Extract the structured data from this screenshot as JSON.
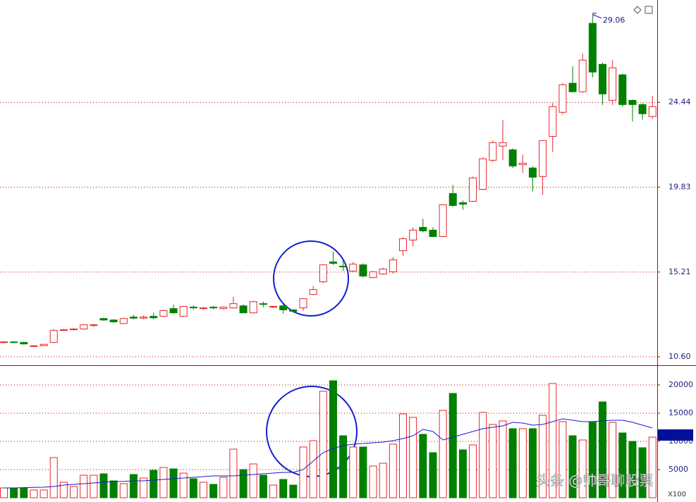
{
  "chart_data": [
    {
      "type": "candlestick",
      "open": [
        11.38,
        11.41,
        11.38,
        11.18,
        11.2,
        11.38,
        12.03,
        12.07,
        12.11,
        12.3,
        12.68,
        12.6,
        12.41,
        12.76,
        12.7,
        12.8,
        12.8,
        13.22,
        12.8,
        13.3,
        13.22,
        13.3,
        13.22,
        13.26,
        13.37,
        12.99,
        13.49,
        13.3,
        13.37,
        13.15,
        13.26,
        13.99,
        14.68,
        15.76,
        15.53,
        15.26,
        15.6,
        14.91,
        15.1,
        15.22,
        16.37,
        16.95,
        17.64,
        17.49,
        17.14,
        19.48,
        18.98,
        19.06,
        19.71,
        21.29,
        22.06,
        21.86,
        21.05,
        20.87,
        20.41,
        22.59,
        23.9,
        25.48,
        25.02,
        28.74,
        26.51,
        24.55,
        25.94,
        24.55,
        24.32,
        23.67
      ],
      "high": [
        11.45,
        11.45,
        11.41,
        11.22,
        11.3,
        12.11,
        12.11,
        12.15,
        12.38,
        12.38,
        12.72,
        12.64,
        12.72,
        12.88,
        12.84,
        13.0,
        13.15,
        13.45,
        13.37,
        13.4,
        13.3,
        13.37,
        13.34,
        13.87,
        13.45,
        13.64,
        13.6,
        13.37,
        13.45,
        13.18,
        13.79,
        14.45,
        15.64,
        16.33,
        15.87,
        15.76,
        15.68,
        15.26,
        15.45,
        16.03,
        17.1,
        17.64,
        18.1,
        17.64,
        18.87,
        19.95,
        19.1,
        20.41,
        21.45,
        22.36,
        23.48,
        21.94,
        21.6,
        20.95,
        22.36,
        24.4,
        25.5,
        26.4,
        27.1,
        29.06,
        26.6,
        26.74,
        26.0,
        24.6,
        24.4,
        24.8
      ],
      "low": [
        11.34,
        11.34,
        11.26,
        11.14,
        11.18,
        11.34,
        12.0,
        12.03,
        12.07,
        12.22,
        12.56,
        12.45,
        12.38,
        12.64,
        12.64,
        12.64,
        12.76,
        12.95,
        12.76,
        13.18,
        13.15,
        13.18,
        13.18,
        13.22,
        12.99,
        12.95,
        13.3,
        13.26,
        12.95,
        12.99,
        13.11,
        13.95,
        14.6,
        15.6,
        15.26,
        15.22,
        14.91,
        14.87,
        15.06,
        15.14,
        16.1,
        16.6,
        17.37,
        17.1,
        17.1,
        18.75,
        18.6,
        19.02,
        19.67,
        21.21,
        21.3,
        20.87,
        20.6,
        19.6,
        19.4,
        21.75,
        23.8,
        24.98,
        24.95,
        25.8,
        24.3,
        24.3,
        24.2,
        23.4,
        23.5,
        23.55
      ],
      "close": [
        11.41,
        11.38,
        11.3,
        11.2,
        11.28,
        12.03,
        12.07,
        12.11,
        12.34,
        12.34,
        12.6,
        12.5,
        12.68,
        12.7,
        12.76,
        12.72,
        13.11,
        12.99,
        13.34,
        13.26,
        13.26,
        13.26,
        13.3,
        13.49,
        12.99,
        13.6,
        13.45,
        13.34,
        13.15,
        13.07,
        13.76,
        14.26,
        15.6,
        15.68,
        15.49,
        15.64,
        14.99,
        15.22,
        15.37,
        15.87,
        17.02,
        17.49,
        17.45,
        17.14,
        18.87,
        18.83,
        18.9,
        20.33,
        21.37,
        22.25,
        22.25,
        20.98,
        21.13,
        20.37,
        22.36,
        24.21,
        25.4,
        25.02,
        26.74,
        26.09,
        24.9,
        26.32,
        24.32,
        24.32,
        23.82,
        24.21
      ],
      "up_color": "#e8262a",
      "down_color": "#008000",
      "ylim": [
        10.14,
        30.01
      ],
      "yticks": [
        {
          "value": 10.6,
          "label": "10.60"
        },
        15.21,
        19.83,
        24.44
      ],
      "grid": true
    },
    {
      "type": "volume",
      "values": [
        1750,
        1750,
        1750,
        1375,
        1375,
        7125,
        2750,
        2000,
        4000,
        4000,
        4250,
        3000,
        2500,
        4125,
        3500,
        4875,
        5375,
        5125,
        4375,
        3375,
        2750,
        2375,
        3625,
        8625,
        5000,
        6000,
        4000,
        2250,
        3250,
        2250,
        9000,
        10125,
        18875,
        20750,
        11000,
        9000,
        9000,
        5625,
        6125,
        9500,
        14875,
        14250,
        11250,
        8000,
        15500,
        18500,
        8500,
        9375,
        15125,
        13000,
        13625,
        12250,
        12250,
        12250,
        14625,
        20250,
        13500,
        11000,
        10250,
        13500,
        17000,
        13375,
        11500,
        10000,
        8875,
        10750
      ],
      "average": [
        1750,
        1750,
        1800,
        1850,
        1875,
        2000,
        2250,
        2375,
        2500,
        2625,
        2750,
        2875,
        2900,
        3000,
        3000,
        3125,
        3250,
        3375,
        3500,
        3625,
        3750,
        3875,
        3875,
        3875,
        4000,
        4125,
        4250,
        4375,
        4500,
        4500,
        5000,
        6500,
        8000,
        8750,
        9250,
        9500,
        9625,
        9750,
        9875,
        10125,
        10500,
        11000,
        12125,
        11750,
        10250,
        10750,
        11250,
        11750,
        12250,
        12500,
        12750,
        13375,
        13250,
        12875,
        13000,
        13500,
        14000,
        13750,
        13500,
        13500,
        13625,
        13750,
        13750,
        13375,
        12875,
        12375
      ],
      "average_color": "#1a1acc",
      "ylim": [
        0,
        23500
      ],
      "yticks": [
        5000,
        10000,
        15000,
        20000
      ],
      "unit_label": "X100",
      "grid": true
    }
  ],
  "watermark": "头条 @帅哥聊股票"
}
